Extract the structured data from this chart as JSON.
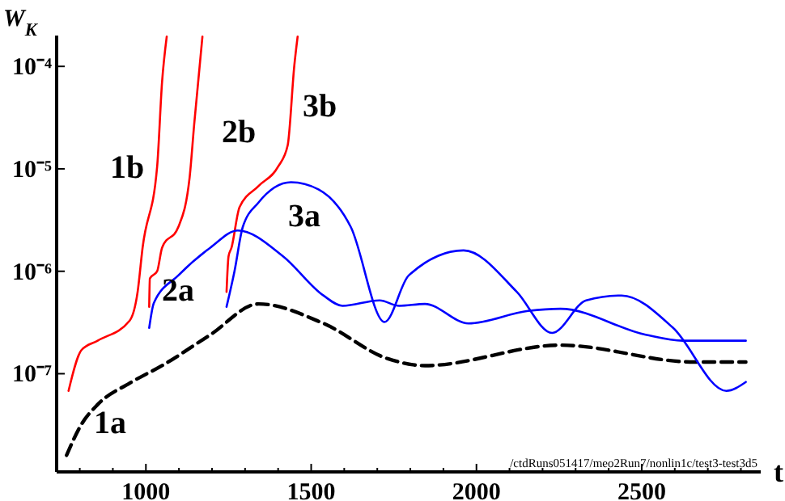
{
  "chart_data": {
    "type": "line",
    "ylabel": "W$_{K}$",
    "xlabel": "t",
    "log": "y",
    "legend": false,
    "grid": false,
    "xlim": [
      730,
      2860
    ],
    "xticks": [
      1000,
      1500,
      2000,
      2500
    ],
    "ylim": [
      1.1e-08,
      0.0002
    ],
    "yticks": [
      {
        "value": 1e-07,
        "label": "10⁻⁷"
      },
      {
        "value": 1e-06,
        "label": "10⁻⁶"
      },
      {
        "value": 1e-05,
        "label": "10⁻⁵"
      },
      {
        "value": 0.0001,
        "label": "10⁻⁴"
      }
    ],
    "annotations": [
      "/ctdRuns051417/meo2Run7/nonlin1c/test3-test3d5"
    ],
    "series": [
      {
        "name": "1a",
        "color": "#000000",
        "line_style": "dashed",
        "x": [
          760,
          805,
          854,
          951,
          1049,
          1195,
          1341,
          1537,
          1732,
          1844,
          2254,
          2659,
          2815
        ],
        "values": [
          1.6e-08,
          3.2e-08,
          5e-08,
          8.1e-08,
          1.2e-07,
          2.4e-07,
          4.8e-07,
          3.1e-07,
          1.4e-07,
          1.2e-07,
          1.9e-07,
          1.3e-07,
          1.3e-07
        ]
      },
      {
        "name": "1b",
        "color": "#ff0000",
        "line_style": "solid",
        "x": [
          766,
          805,
          854,
          951,
          975,
          990,
          1034,
          1049,
          1063
        ],
        "values": [
          6.8e-08,
          1.7e-07,
          2.1e-07,
          3.3e-07,
          6.3e-07,
          1.7e-06,
          1.05e-05,
          7.1e-05,
          0.000195
        ]
      },
      {
        "name": "2b",
        "color": "#ff0000",
        "line_style": "solid",
        "x": [
          1010,
          1012,
          1034,
          1049,
          1098,
          1132,
          1146,
          1171
        ],
        "values": [
          4.5e-07,
          8.5e-07,
          1e-06,
          1.7e-06,
          2.7e-06,
          8.1e-06,
          2.7e-05,
          0.000195
        ]
      },
      {
        "name": "3b",
        "color": "#ff0000",
        "line_style": "solid",
        "x": [
          1244,
          1250,
          1259,
          1283,
          1341,
          1400,
          1429,
          1449,
          1459
        ],
        "values": [
          6.3e-07,
          1.4e-06,
          1.7e-06,
          4.2e-06,
          6.8e-06,
          1.05e-05,
          1.7e-05,
          0.000102,
          0.000195
        ]
      },
      {
        "name": "2a",
        "color": "#0000ff",
        "line_style": "solid",
        "x": [
          1010,
          1024,
          1098,
          1195,
          1278,
          1415,
          1537,
          1595,
          1707,
          1766,
          1844,
          1976,
          2156,
          2254,
          2512,
          2624,
          2815
        ],
        "values": [
          2.8e-07,
          4.9e-07,
          9.1e-07,
          1.7e-06,
          2.5e-06,
          1.4e-06,
          5.8e-07,
          4.6e-07,
          5.2e-07,
          4.6e-07,
          4.8e-07,
          3.1e-07,
          4.1e-07,
          4.3e-07,
          2.4e-07,
          2.1e-07,
          2.1e-07
        ]
      },
      {
        "name": "3a",
        "color": "#0000ff",
        "line_style": "solid",
        "x": [
          1244,
          1268,
          1293,
          1341,
          1439,
          1522,
          1620,
          1722,
          1795,
          1961,
          2122,
          2229,
          2332,
          2439,
          2595,
          2756,
          2815
        ],
        "values": [
          4.5e-07,
          1e-06,
          2.7e-06,
          4.7e-06,
          7.4e-06,
          6.3e-06,
          2.7e-06,
          3.2e-07,
          9.1e-07,
          1.6e-06,
          6.3e-07,
          2.5e-07,
          5.2e-07,
          5.8e-07,
          2.8e-07,
          6.8e-08,
          8.3e-08
        ]
      }
    ]
  }
}
